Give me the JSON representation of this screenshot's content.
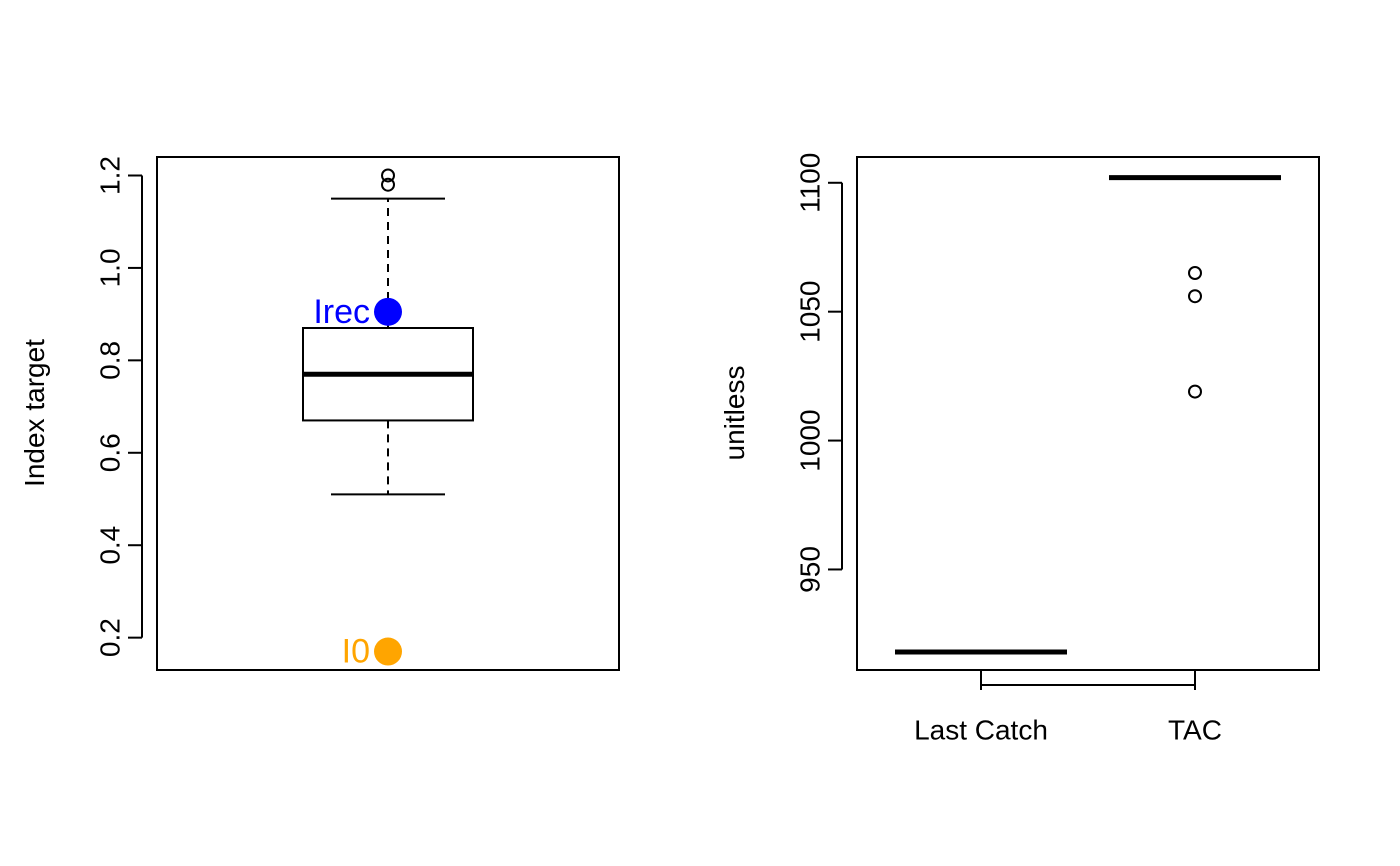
{
  "chart_data": [
    {
      "type": "boxplot",
      "ylabel": "Index target",
      "ylim": [
        0.13,
        1.24
      ],
      "yticks": [
        0.2,
        0.4,
        0.6,
        0.8,
        1.0,
        1.2
      ],
      "ytick_labels": [
        "0.2",
        "0.4",
        "0.6",
        "0.8",
        "1.0",
        "1.2"
      ],
      "box": {
        "whisker_low": 0.51,
        "q1": 0.67,
        "median": 0.77,
        "q3": 0.87,
        "whisker_high": 1.15
      },
      "outliers": [
        1.18,
        1.2
      ],
      "reference_points": [
        {
          "label": "Irec",
          "value": 0.905,
          "color": "#0000ff"
        },
        {
          "label": "I0",
          "value": 0.17,
          "color": "#ffa500"
        }
      ]
    },
    {
      "type": "boxplot",
      "ylabel": "unitless",
      "ylim": [
        911,
        1110
      ],
      "yticks": [
        950,
        1000,
        1050,
        1100
      ],
      "ytick_labels": [
        "950",
        "1000",
        "1050",
        "1100"
      ],
      "categories": [
        "Last Catch",
        "TAC"
      ],
      "boxes": [
        {
          "category": "Last Catch",
          "median": 918,
          "outliers": []
        },
        {
          "category": "TAC",
          "median": 1102,
          "outliers": [
            1065,
            1056,
            1019
          ]
        }
      ]
    }
  ]
}
